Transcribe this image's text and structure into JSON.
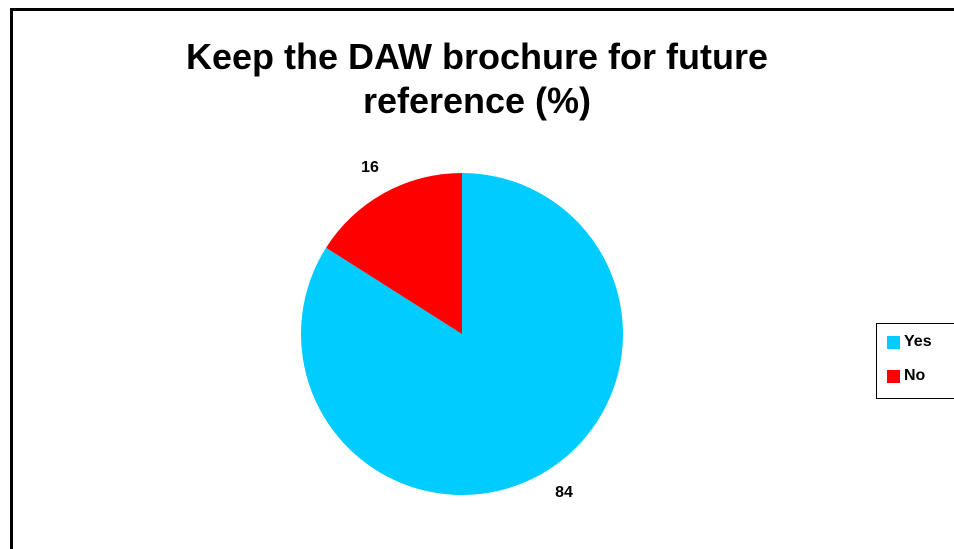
{
  "chart_data": {
    "type": "pie",
    "title_lines": [
      "Keep the DAW brochure for future",
      "reference (%)"
    ],
    "slices": [
      {
        "label": "Yes",
        "value": 84,
        "color": "#00CCFF"
      },
      {
        "label": "No",
        "value": 16,
        "color": "#FF0000"
      }
    ],
    "legend_position": "right"
  }
}
